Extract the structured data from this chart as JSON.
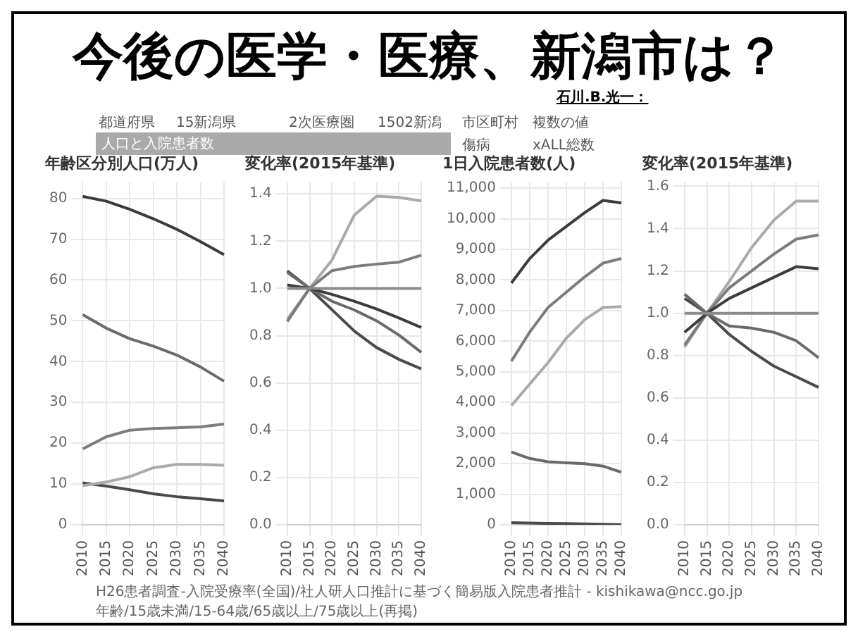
{
  "chart_data": [
    {
      "type": "other",
      "title": "今後の医学・医療、新潟市は？",
      "annotations": [
        "石川.B.光一：",
        "都道府県",
        "15新潟県",
        "2次医療圏",
        "1502新潟",
        "市区町村",
        "複数の値",
        "人口と入院患者数",
        "傷病",
        "xALL総数",
        "H26患者調査-入院受療率(全国)/社人研人口推計に基づく簡易版入院患者推計 - kishikawa@ncc.go.jp",
        "年齢/15歳未満/15-64歳/65歳以上/75歳以上(再掲)"
      ]
    },
    {
      "type": "line",
      "title": "年齢区分別人口(万人)",
      "categories": [
        "2010",
        "2015",
        "2020",
        "2025",
        "2030",
        "2035",
        "2040"
      ],
      "series": [
        {
          "color": "#3c3c3c",
          "values": [
            80.5,
            79.3,
            77.3,
            75,
            72.4,
            69.4,
            66.2
          ]
        },
        {
          "color": "#6a6a6a",
          "values": [
            51.5,
            48.2,
            45.6,
            43.8,
            41.6,
            38.7,
            35.2
          ]
        },
        {
          "color": "#7c7c7c",
          "values": [
            18.6,
            21.6,
            23.2,
            23.6,
            23.8,
            24,
            24.7
          ]
        },
        {
          "color": "#aaaaaa",
          "values": [
            9.6,
            10.5,
            11.8,
            14,
            14.8,
            14.8,
            14.6
          ]
        },
        {
          "color": "#4a4a4a",
          "values": [
            10.3,
            9.5,
            8.6,
            7.6,
            6.9,
            6.4,
            5.9
          ]
        }
      ],
      "ylim": [
        0,
        84
      ],
      "yticks": [
        0,
        10,
        20,
        30,
        40,
        50,
        60,
        70,
        80
      ],
      "grid": true,
      "legend": false,
      "marker": "none"
    },
    {
      "type": "line",
      "title": "変化率(2015年基準)",
      "categories": [
        "2010",
        "2015",
        "2020",
        "2025",
        "2030",
        "2035",
        "2040"
      ],
      "series": [
        {
          "color": "#3c3c3c",
          "values": [
            1.015,
            1,
            0.975,
            0.946,
            0.913,
            0.875,
            0.835
          ]
        },
        {
          "color": "#6a6a6a",
          "values": [
            1.068,
            1,
            0.946,
            0.909,
            0.863,
            0.803,
            0.73
          ]
        },
        {
          "color": "#7c7c7c",
          "values": [
            0.86,
            1,
            1.075,
            1.093,
            1.103,
            1.111,
            1.14
          ]
        },
        {
          "color": "#aaaaaa",
          "values": [
            0.87,
            1,
            1.12,
            1.31,
            1.39,
            1.385,
            1.37
          ]
        },
        {
          "color": "#4a4a4a",
          "values": [
            1.074,
            1,
            0.91,
            0.82,
            0.75,
            0.7,
            0.66
          ]
        }
      ],
      "ylim": [
        0,
        1.45
      ],
      "yticks": [
        {
          "value": 0,
          "label": "0.0"
        },
        0.2,
        0.4,
        0.6,
        0.8,
        {
          "value": 1,
          "label": "1.0"
        },
        1.2,
        1.4
      ],
      "ref_lines": [
        {
          "axis": "y",
          "value": 1,
          "color": "#8a8a8a"
        }
      ],
      "grid": true,
      "legend": false,
      "marker": "none"
    },
    {
      "type": "line",
      "title": "1日入院患者数(人)",
      "categories": [
        "2010",
        "2015",
        "2020",
        "2025",
        "2030",
        "2035",
        "2040"
      ],
      "series": [
        {
          "color": "#3c3c3c",
          "values": [
            7900,
            8700,
            9300,
            9750,
            10200,
            10600,
            10520
          ]
        },
        {
          "color": "#7c7c7c",
          "values": [
            5350,
            6300,
            7100,
            7600,
            8100,
            8550,
            8700
          ]
        },
        {
          "color": "#aaaaaa",
          "values": [
            3900,
            4600,
            5300,
            6100,
            6700,
            7100,
            7130
          ]
        },
        {
          "color": "#6a6a6a",
          "values": [
            2380,
            2170,
            2060,
            2030,
            2000,
            1920,
            1720
          ]
        },
        {
          "color": "#4a4a4a",
          "values": [
            70,
            60,
            50,
            40,
            30,
            20,
            10
          ]
        }
      ],
      "ylim": [
        0,
        11200
      ],
      "yticks": [
        0,
        {
          "value": 1000,
          "label": "1,000"
        },
        {
          "value": 2000,
          "label": "2,000"
        },
        {
          "value": 3000,
          "label": "3,000"
        },
        {
          "value": 4000,
          "label": "4,000"
        },
        {
          "value": 5000,
          "label": "5,000"
        },
        {
          "value": 6000,
          "label": "6,000"
        },
        {
          "value": 7000,
          "label": "7,000"
        },
        {
          "value": 8000,
          "label": "8,000"
        },
        {
          "value": 9000,
          "label": "9,000"
        },
        {
          "value": 10000,
          "label": "10,000"
        },
        {
          "value": 11000,
          "label": "11,000"
        }
      ],
      "grid": true,
      "legend": false,
      "marker": "none"
    },
    {
      "type": "line",
      "title": "変化率(2015年基準)",
      "categories": [
        "2010",
        "2015",
        "2020",
        "2025",
        "2030",
        "2035",
        "2040"
      ],
      "series": [
        {
          "color": "#3c3c3c",
          "values": [
            0.91,
            1,
            1.07,
            1.12,
            1.17,
            1.22,
            1.21
          ]
        },
        {
          "color": "#7c7c7c",
          "values": [
            0.85,
            1,
            1.12,
            1.2,
            1.28,
            1.35,
            1.37
          ]
        },
        {
          "color": "#aaaaaa",
          "values": [
            0.84,
            1,
            1.15,
            1.31,
            1.44,
            1.53,
            1.53
          ]
        },
        {
          "color": "#6a6a6a",
          "values": [
            1.09,
            1,
            0.94,
            0.93,
            0.91,
            0.87,
            0.79
          ]
        },
        {
          "color": "#4a4a4a",
          "values": [
            1.07,
            1,
            0.9,
            0.82,
            0.75,
            0.7,
            0.65
          ]
        }
      ],
      "ylim": [
        0,
        1.62
      ],
      "yticks": [
        {
          "value": 0,
          "label": "0.0"
        },
        0.2,
        0.4,
        0.6,
        0.8,
        {
          "value": 1,
          "label": "1.0"
        },
        1.2,
        1.4,
        1.6
      ],
      "ref_lines": [
        {
          "axis": "y",
          "value": 1,
          "color": "#8a8a8a"
        }
      ],
      "grid": true,
      "legend": false,
      "marker": "none"
    }
  ]
}
